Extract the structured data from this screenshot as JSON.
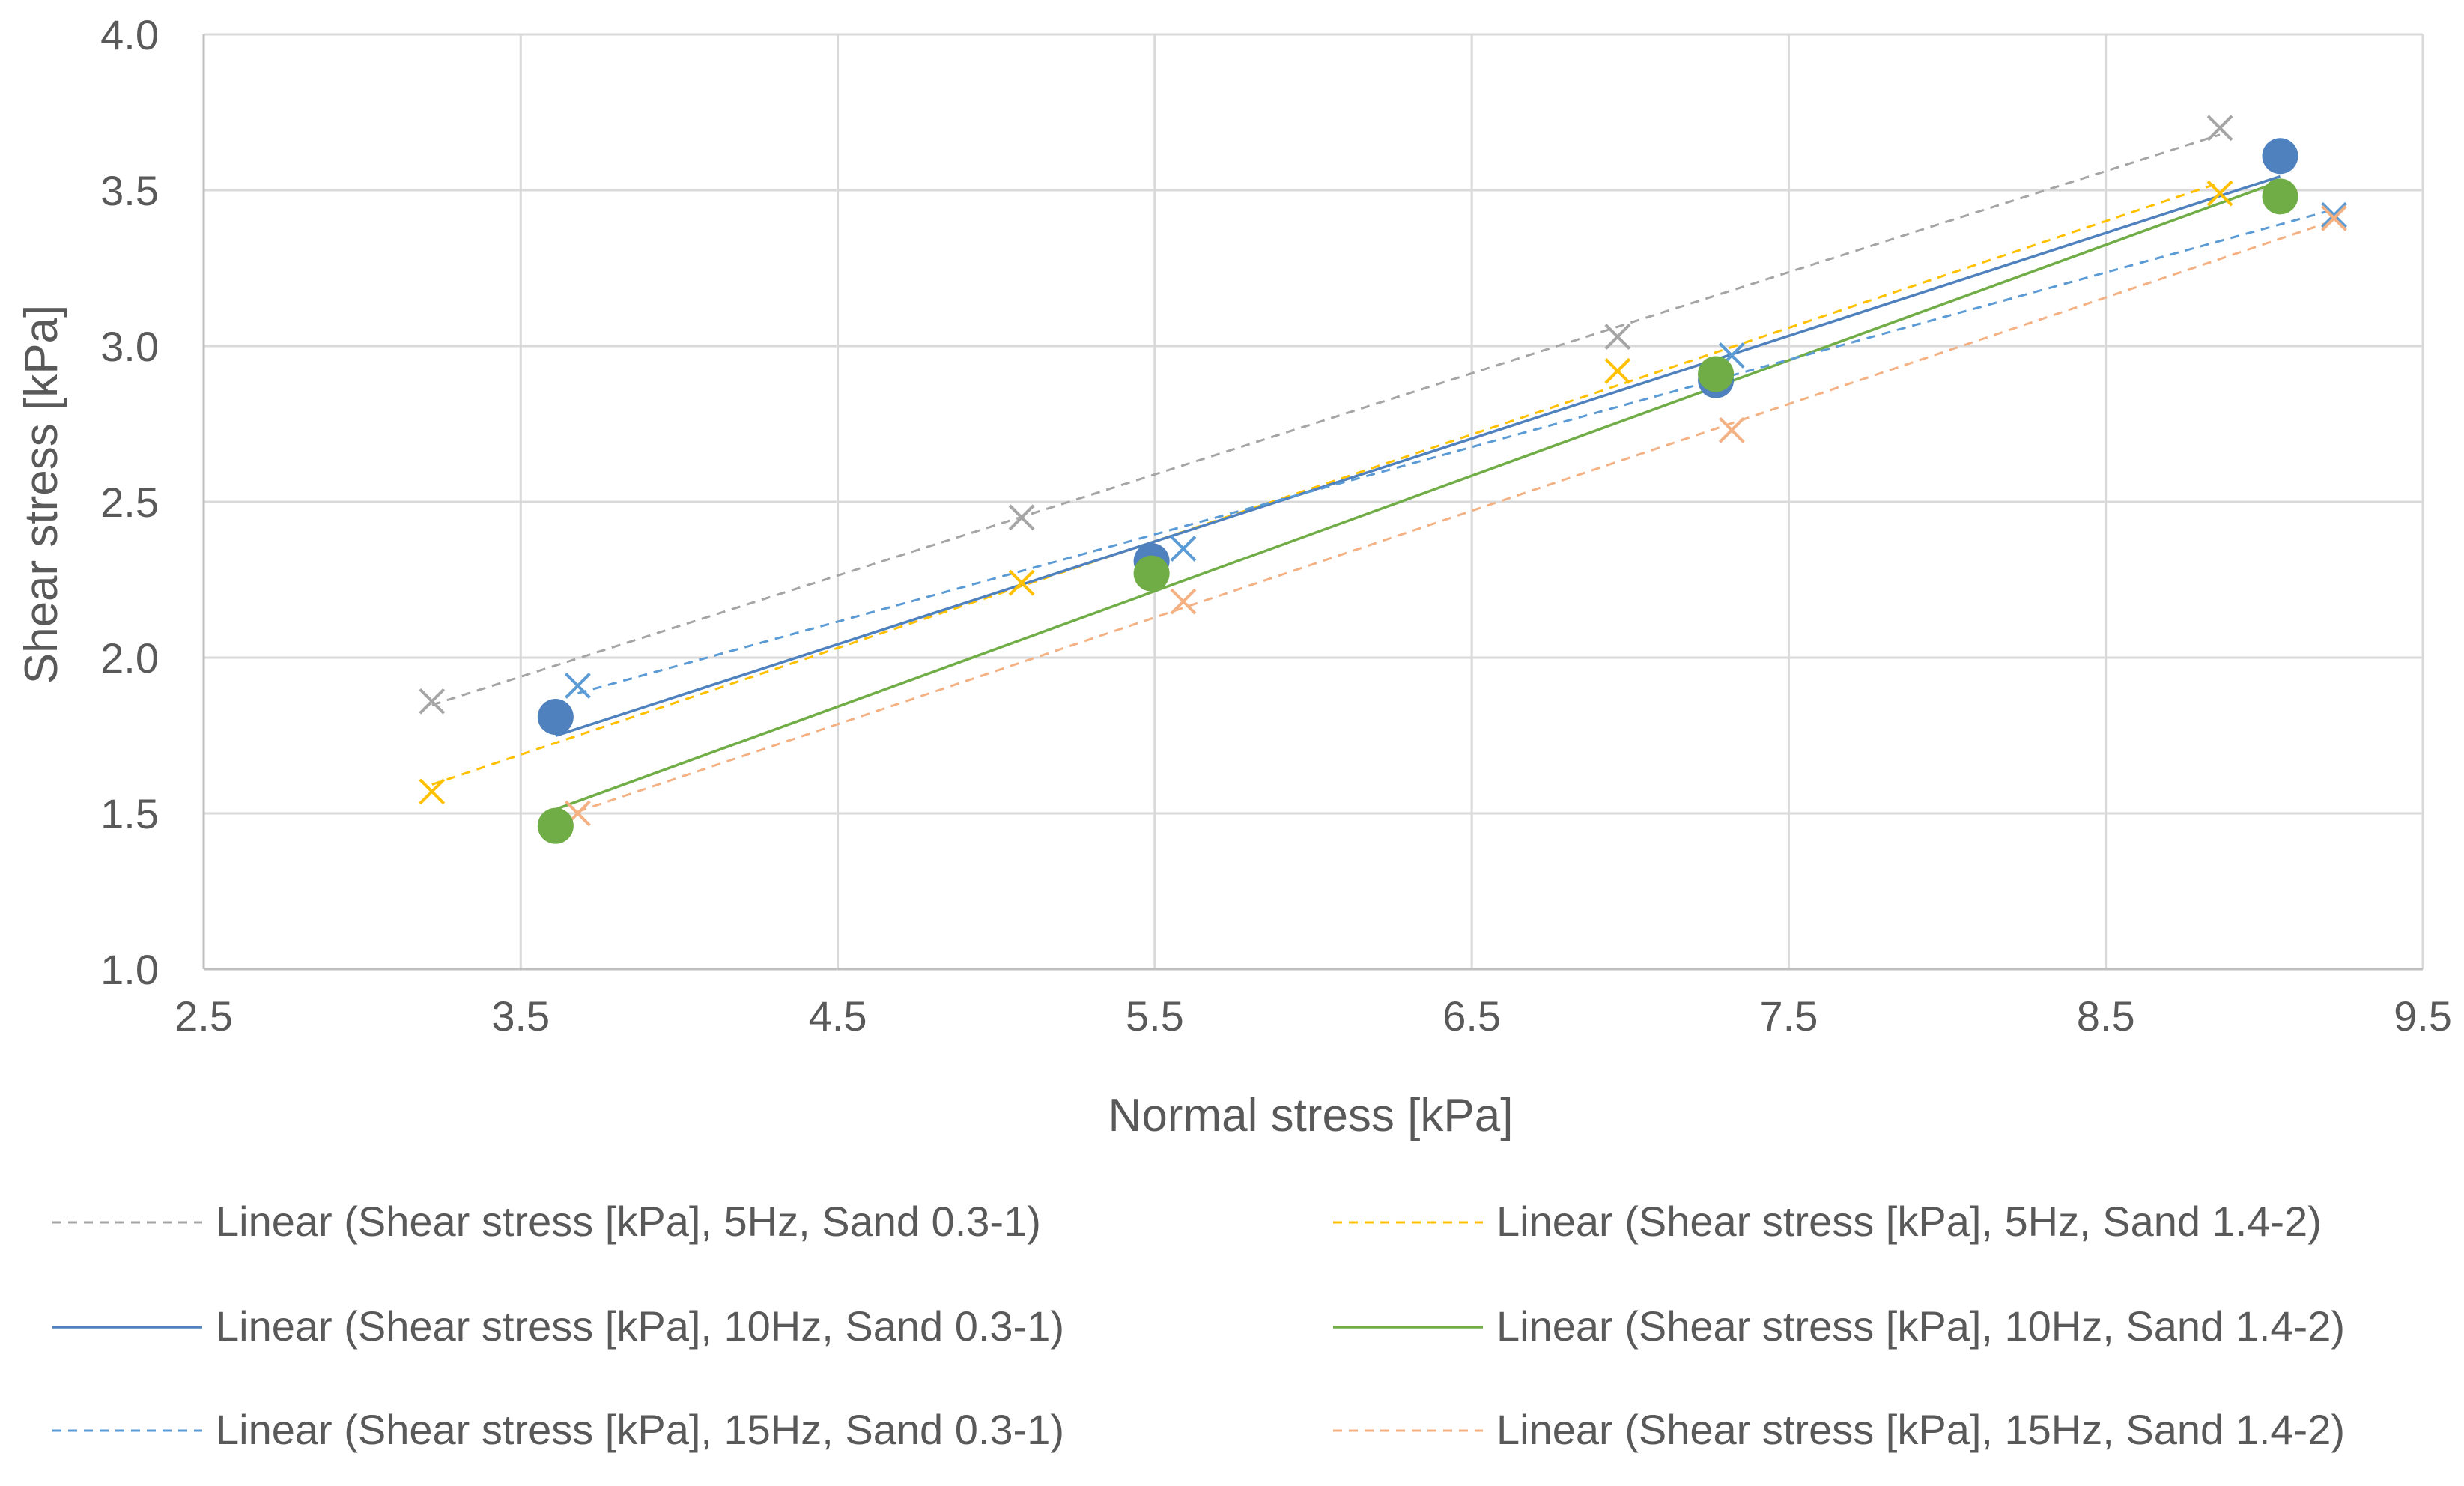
{
  "chart_data": {
    "type": "scatter",
    "title": "",
    "xlabel": "Normal stress [kPa]",
    "ylabel": "Shear stress [kPa]",
    "xlim": [
      2.5,
      9.5
    ],
    "ylim": [
      1.0,
      4.0
    ],
    "xticks": [
      "2.5",
      "3.5",
      "4.5",
      "5.5",
      "6.5",
      "7.5",
      "8.5",
      "9.5"
    ],
    "yticks": [
      "1.0",
      "1.5",
      "2.0",
      "2.5",
      "3.0",
      "3.5",
      "4.0"
    ],
    "grid": true,
    "legend_position": "bottom",
    "series": [
      {
        "name": "Shear stress [kPa], 5Hz, Sand 0.3-1",
        "trend_label": "Linear (Shear stress [kPa], 5Hz, Sand 0.3-1)",
        "marker": "x",
        "color": "#a5a5a5",
        "line": "dashed",
        "show_marker_key": false,
        "x": [
          3.22,
          5.08,
          6.96,
          8.86
        ],
        "y": [
          1.86,
          2.45,
          3.03,
          3.7
        ]
      },
      {
        "name": "Shear stress [kPa], 5Hz, Sand 1.4-2",
        "trend_label": "Linear (Shear stress [kPa], 5Hz, Sand 1.4-2)",
        "marker": "x",
        "color": "#ffc000",
        "line": "dashed",
        "show_marker_key": false,
        "x": [
          3.22,
          5.08,
          6.96,
          8.86
        ],
        "y": [
          1.57,
          2.24,
          2.92,
          3.49
        ]
      },
      {
        "name": "Shear stress [kPa], 10Hz, Sand 0.3-1",
        "trend_label": "Linear (Shear stress [kPa], 10Hz, Sand 0.3-1)",
        "marker": "circle",
        "color": "#4e81bd",
        "line": "solid",
        "show_marker_key": false,
        "x": [
          3.61,
          5.49,
          7.27,
          9.05
        ],
        "y": [
          1.81,
          2.31,
          2.89,
          3.61
        ]
      },
      {
        "name": "Shear stress [kPa], 10Hz, Sand 1.4-2",
        "trend_label": "Linear (Shear stress [kPa], 10Hz, Sand 1.4-2)",
        "marker": "circle",
        "color": "#70ad47",
        "line": "solid",
        "show_marker_key": false,
        "x": [
          3.61,
          5.49,
          7.27,
          9.05
        ],
        "y": [
          1.46,
          2.27,
          2.91,
          3.48
        ]
      },
      {
        "name": "Shear stress [kPa], 15Hz, Sand 0.3-1",
        "trend_label": "Linear (Shear stress [kPa], 15Hz, Sand 0.3-1)",
        "marker": "x",
        "color": "#5b9bd5",
        "line": "dashed",
        "show_marker_key": false,
        "x": [
          3.68,
          5.59,
          7.32,
          9.22
        ],
        "y": [
          1.91,
          2.35,
          2.97,
          3.42
        ]
      },
      {
        "name": "Shear stress [kPa], 15Hz, Sand 1.4-2",
        "trend_label": "Linear (Shear stress [kPa], 15Hz, Sand 1.4-2)",
        "marker": "x",
        "color": "#f4b183",
        "line": "dashed",
        "show_marker_key": false,
        "x": [
          3.68,
          5.59,
          7.32,
          9.22
        ],
        "y": [
          1.5,
          2.18,
          2.73,
          3.41
        ]
      }
    ],
    "legend_order": [
      0,
      1,
      2,
      3,
      4,
      5
    ]
  }
}
